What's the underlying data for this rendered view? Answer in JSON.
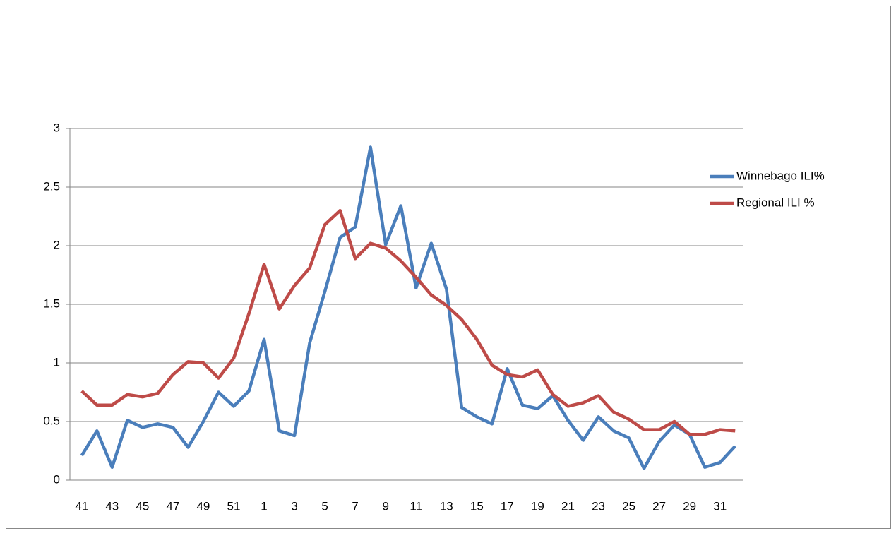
{
  "chart_data": {
    "type": "line",
    "categories": [
      "41",
      null,
      "43",
      null,
      "45",
      null,
      "47",
      null,
      "49",
      null,
      "51",
      null,
      "1",
      null,
      "3",
      null,
      "5",
      null,
      "7",
      null,
      "9",
      null,
      "11",
      null,
      "13",
      null,
      "15",
      null,
      "17",
      null,
      "19",
      null,
      "21",
      null,
      "23",
      null,
      "25",
      null,
      "27",
      null,
      "29",
      null,
      "31",
      null
    ],
    "series": [
      {
        "name": "Winnebago ILI%",
        "color": "#4a7ebb",
        "values": [
          0.21,
          0.42,
          0.11,
          0.51,
          0.45,
          0.48,
          0.45,
          0.28,
          0.5,
          0.75,
          0.63,
          0.76,
          1.2,
          0.42,
          0.38,
          1.17,
          1.61,
          2.07,
          2.16,
          2.84,
          2.01,
          2.34,
          1.64,
          2.02,
          1.63,
          0.62,
          0.54,
          0.48,
          0.95,
          0.64,
          0.61,
          0.72,
          0.51,
          0.34,
          0.54,
          0.42,
          0.36,
          0.1,
          0.33,
          0.47,
          0.39,
          0.11,
          0.15,
          0.29
        ]
      },
      {
        "name": "Regional ILI %",
        "color": "#be4b48",
        "values": [
          0.76,
          0.64,
          0.64,
          0.73,
          0.71,
          0.74,
          0.9,
          1.01,
          1.0,
          0.87,
          1.04,
          1.42,
          1.84,
          1.46,
          1.66,
          1.81,
          2.18,
          2.3,
          1.89,
          2.02,
          1.98,
          1.87,
          1.73,
          1.58,
          1.49,
          1.37,
          1.2,
          0.98,
          0.9,
          0.88,
          0.94,
          0.73,
          0.63,
          0.66,
          0.72,
          0.58,
          0.52,
          0.43,
          0.43,
          0.5,
          0.39,
          0.39,
          0.43,
          0.42
        ]
      }
    ],
    "ylim": [
      0,
      3
    ],
    "yticks": [
      0,
      0.5,
      1,
      1.5,
      2,
      2.5,
      3
    ],
    "grid": true,
    "legend": "right"
  }
}
